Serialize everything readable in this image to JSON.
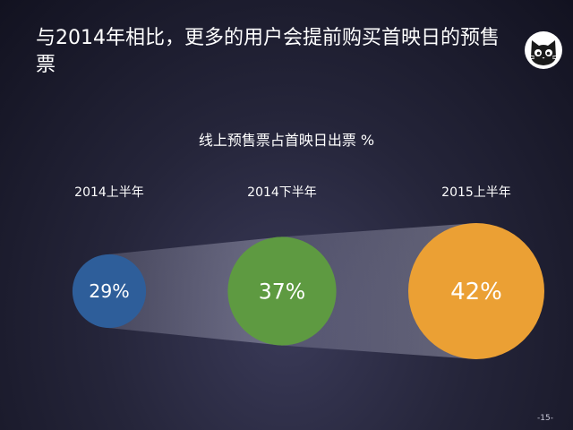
{
  "slide": {
    "title": "与2014年相比，更多的用户会提前购买首映日的预售票",
    "page_number": "-15-",
    "logo_icon": "cat-face-icon"
  },
  "chart_data": {
    "type": "bubble",
    "title": "线上预售票占首映日出票 %",
    "categories": [
      "2014上半年",
      "2014下半年",
      "2015上半年"
    ],
    "values": [
      29,
      37,
      42
    ],
    "value_labels": [
      "29%",
      "37%",
      "42%"
    ],
    "colors": [
      "#2e5e9a",
      "#5e9a41",
      "#eba034"
    ]
  }
}
